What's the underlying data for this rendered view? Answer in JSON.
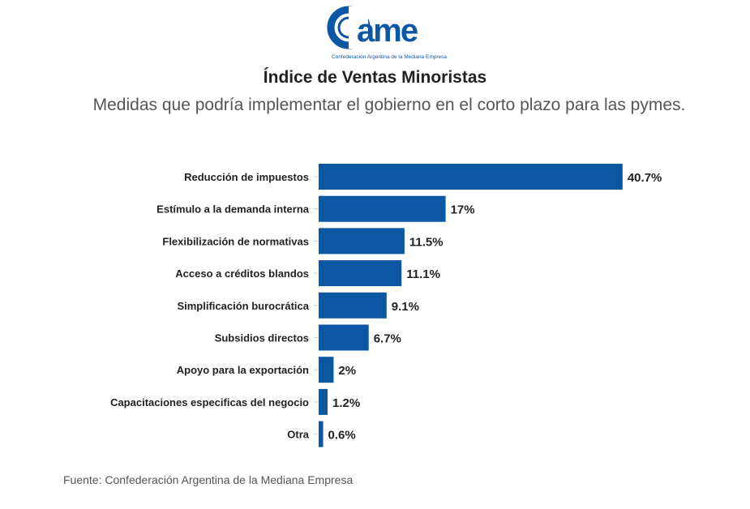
{
  "logo": {
    "text": "came",
    "caption": "Confederación Argentina de la Mediana Empresa",
    "color": "#0b57a4"
  },
  "chart_data": {
    "type": "bar",
    "orientation": "horizontal",
    "title": "Índice de Ventas Minoristas",
    "subtitle": "Medidas que podría implementar el gobierno en el corto plazo para las pymes.",
    "categories": [
      "Reducción de impuestos",
      "Estímulo a la demanda interna",
      "Flexibilización de normativas",
      "Acceso a créditos blandos",
      "Simplificación burocrática",
      "Subsidios directos",
      "Apoyo para la exportación",
      "Capacitaciones especificas del negocio",
      "Otra"
    ],
    "values": [
      40.7,
      17,
      11.5,
      11.1,
      9.1,
      6.7,
      2,
      1.2,
      0.6
    ],
    "data_labels": [
      "40.7%",
      "17%",
      "11.5%",
      "11.1%",
      "9.1%",
      "6.7%",
      "2%",
      "1.2%",
      "0.6%"
    ],
    "xlabel": "",
    "ylabel": "",
    "grid": false,
    "bar_color": "#0b57a4"
  },
  "source": "Fuente: Confederación Argentina de la Mediana Empresa"
}
